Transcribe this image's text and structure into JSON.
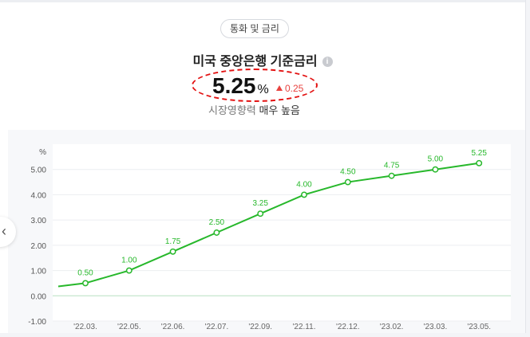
{
  "category_pill": "통화 및 금리",
  "title": "미국 중앙은행 기준금리",
  "info_icon": "info-icon",
  "rate": {
    "value": "5.25",
    "unit": "%",
    "change": "0.25",
    "change_color": "#e8423f"
  },
  "influence": {
    "label": "시장영향력",
    "level": "매우 높음"
  },
  "nav": {
    "icon": "chevron-left-icon"
  },
  "chart_data": {
    "type": "line",
    "title": "",
    "xlabel": "",
    "ylabel": "%",
    "categories": [
      "'22.03.",
      "'22.05.",
      "'22.06.",
      "'22.07.",
      "'22.09.",
      "'22.11.",
      "'22.12.",
      "'23.02.",
      "'23.03.",
      "'23.05."
    ],
    "series": [
      {
        "values": [
          0.5,
          1.0,
          1.75,
          2.5,
          3.25,
          4.0,
          4.5,
          4.75,
          5.0,
          5.25
        ],
        "labels": [
          "0.50",
          "1.00",
          "1.75",
          "2.50",
          "3.25",
          "4.00",
          "4.50",
          "4.75",
          "5.00",
          "5.25"
        ],
        "color": "#27b82b"
      }
    ],
    "start_value": 0.37,
    "yticks": [
      "-1.00",
      "0.00",
      "1.00",
      "2.00",
      "3.00",
      "4.00",
      "5.00"
    ],
    "ylim": [
      -1.0,
      6.0
    ],
    "grid": true,
    "baseline_color": "#b7dfc0"
  }
}
